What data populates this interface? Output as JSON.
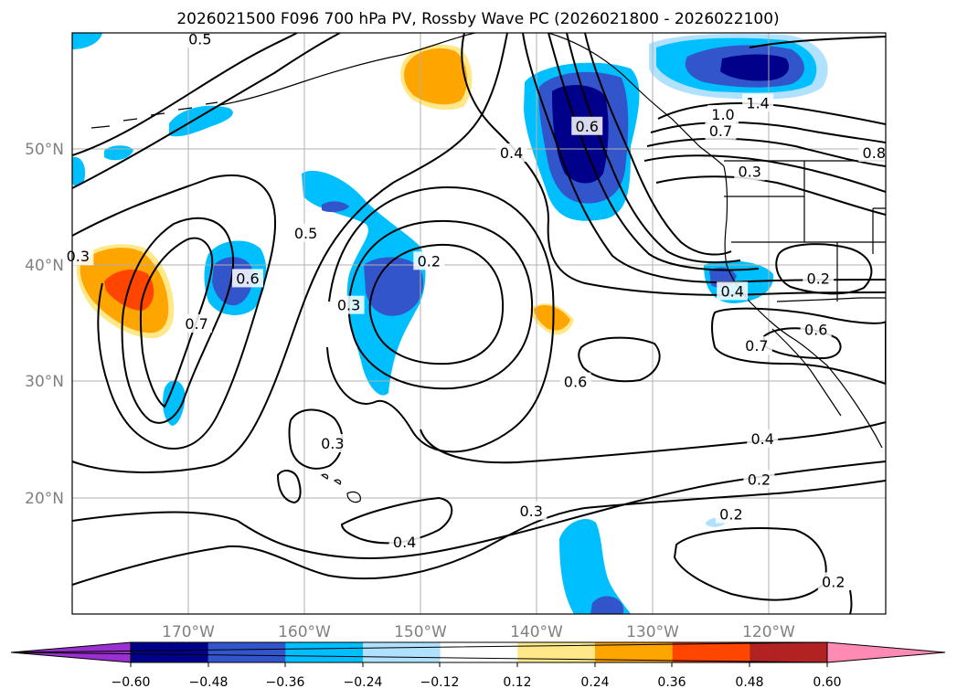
{
  "title": "2026021500 F096 700 hPa PV, Rossby Wave PC (2026021800 - 2026022100)",
  "map": {
    "lon_range": [
      -180,
      -110
    ],
    "lat_range": [
      10,
      60
    ],
    "lon_ticks": [
      {
        "value": -170,
        "label": "170°W"
      },
      {
        "value": -160,
        "label": "160°W"
      },
      {
        "value": -150,
        "label": "150°W"
      },
      {
        "value": -140,
        "label": "140°W"
      },
      {
        "value": -130,
        "label": "130°W"
      },
      {
        "value": -120,
        "label": "120°W"
      }
    ],
    "lat_ticks": [
      {
        "value": 20,
        "label": "20°N"
      },
      {
        "value": 30,
        "label": "30°N"
      },
      {
        "value": 40,
        "label": "40°N"
      },
      {
        "value": 50,
        "label": "50°N"
      }
    ]
  },
  "contour_labels": [
    {
      "text": "0.5",
      "lon": -169,
      "lat": 59.5
    },
    {
      "text": "0.4",
      "lon": -142.2,
      "lat": 49.7
    },
    {
      "text": "0.6",
      "lon": -135.7,
      "lat": 52.0
    },
    {
      "text": "1.4",
      "lon": -121.0,
      "lat": 54.0
    },
    {
      "text": "1.0",
      "lon": -124.0,
      "lat": 53.0
    },
    {
      "text": "0.7",
      "lon": -124.2,
      "lat": 51.6
    },
    {
      "text": "0.8",
      "lon": -111.0,
      "lat": 49.7
    },
    {
      "text": "0.3",
      "lon": -121.7,
      "lat": 48.1
    },
    {
      "text": "0.3",
      "lon": -179.5,
      "lat": 40.8
    },
    {
      "text": "0.6",
      "lon": -164.9,
      "lat": 38.9
    },
    {
      "text": "0.7",
      "lon": -169.3,
      "lat": 35.0
    },
    {
      "text": "0.5",
      "lon": -159.9,
      "lat": 42.8
    },
    {
      "text": "0.2",
      "lon": -149.3,
      "lat": 40.4
    },
    {
      "text": "0.3",
      "lon": -156.2,
      "lat": 36.6
    },
    {
      "text": "0.4",
      "lon": -123.2,
      "lat": 37.8
    },
    {
      "text": "0.2",
      "lon": -115.8,
      "lat": 38.9
    },
    {
      "text": "0.6",
      "lon": -116.0,
      "lat": 34.5
    },
    {
      "text": "0.7",
      "lon": -121.1,
      "lat": 33.1
    },
    {
      "text": "0.6",
      "lon": -136.7,
      "lat": 30.0
    },
    {
      "text": "0.4",
      "lon": -120.6,
      "lat": 25.1
    },
    {
      "text": "0.3",
      "lon": -157.6,
      "lat": 24.7
    },
    {
      "text": "0.2",
      "lon": -120.9,
      "lat": 21.6
    },
    {
      "text": "0.3",
      "lon": -140.5,
      "lat": 18.9
    },
    {
      "text": "0.4",
      "lon": -151.4,
      "lat": 16.2
    },
    {
      "text": "0.2",
      "lon": -123.3,
      "lat": 18.6
    },
    {
      "text": "0.2",
      "lon": -114.5,
      "lat": 12.8
    }
  ],
  "colorbar": {
    "ticks": [
      "−0.60",
      "−0.48",
      "−0.36",
      "−0.24",
      "−0.12",
      "0.12",
      "0.24",
      "0.36",
      "0.48",
      "0.60"
    ],
    "colors": [
      "#9b30d0",
      "#00008b",
      "#3355cc",
      "#00bfff",
      "#b0e2ff",
      "#ffffff",
      "#fee88a",
      "#ffa500",
      "#ff4500",
      "#b22222",
      "#ff8ab4"
    ]
  }
}
